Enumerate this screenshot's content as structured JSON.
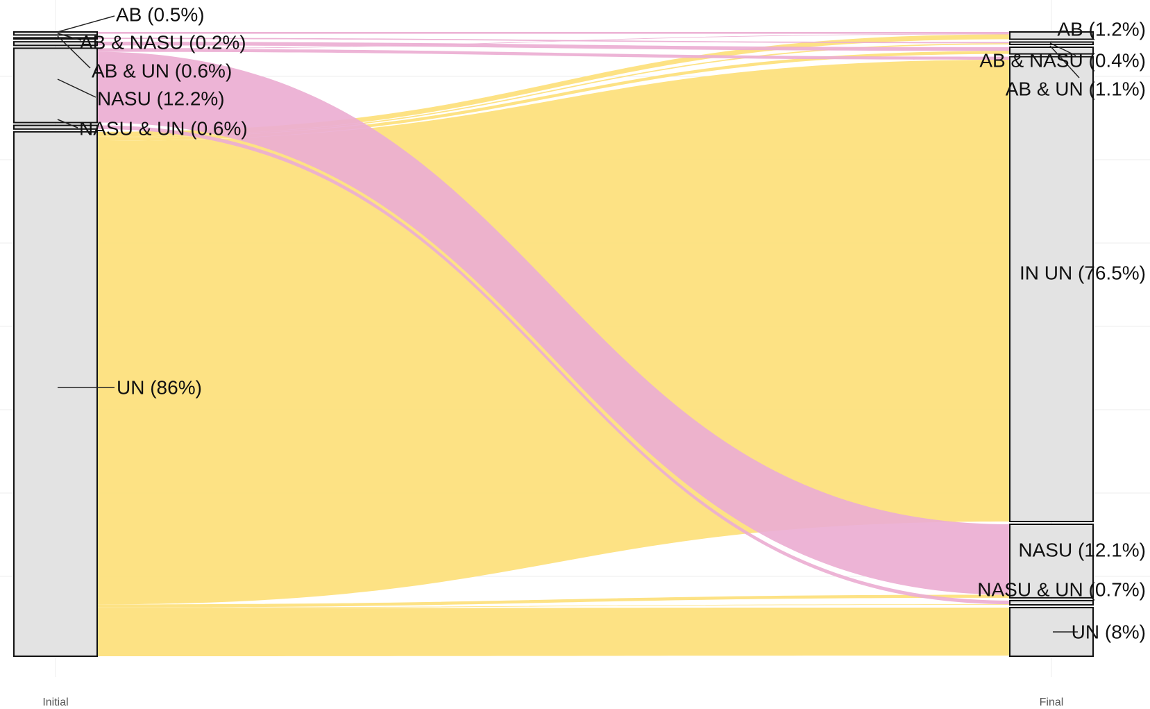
{
  "chart_data": {
    "type": "alluvial",
    "axes": [
      "Initial",
      "Final"
    ],
    "colors": {
      "yellow": "#fde07a",
      "pink": "#ecaed3",
      "node": "#e3e3e3",
      "grid": "#ececec"
    },
    "nodes": {
      "initial": [
        {
          "label": "AB (0.5%)",
          "value": 0.5
        },
        {
          "label": "AB & NASU (0.2%)",
          "value": 0.2
        },
        {
          "label": "AB & UN (0.6%)",
          "value": 0.6
        },
        {
          "label": "NASU (12.2%)",
          "value": 12.2
        },
        {
          "label": "NASU & UN (0.6%)",
          "value": 0.6
        },
        {
          "label": "UN (86%)",
          "value": 86
        }
      ],
      "final": [
        {
          "label": "AB (1.2%)",
          "value": 1.2
        },
        {
          "label": "AB & NASU (0.4%)",
          "value": 0.4
        },
        {
          "label": "AB & UN (1.1%)",
          "value": 1.1
        },
        {
          "label": "IN UN (76.5%)",
          "value": 76.5
        },
        {
          "label": "NASU (12.1%)",
          "value": 12.1
        },
        {
          "label": "NASU & UN (0.7%)",
          "value": 0.7
        },
        {
          "label": "UN (8%)",
          "value": 8
        }
      ]
    },
    "flows": [
      {
        "from": 0,
        "to": 0,
        "value": 0.3,
        "color": "pink"
      },
      {
        "from": 1,
        "to": 1,
        "value": 0.2,
        "color": "pink"
      },
      {
        "from": 2,
        "to": 2,
        "value": 0.6,
        "color": "pink"
      },
      {
        "from": 3,
        "to": 0,
        "value": 0.1,
        "color": "pink"
      },
      {
        "from": 3,
        "to": 3,
        "value": 0.5,
        "color": "pink"
      },
      {
        "from": 3,
        "to": 4,
        "value": 11.6,
        "color": "pink"
      },
      {
        "from": 4,
        "to": 5,
        "value": 0.6,
        "color": "pink"
      },
      {
        "from": 5,
        "to": 0,
        "value": 0.8,
        "color": "yellow"
      },
      {
        "from": 5,
        "to": 1,
        "value": 0.2,
        "color": "yellow"
      },
      {
        "from": 5,
        "to": 2,
        "value": 0.5,
        "color": "yellow"
      },
      {
        "from": 5,
        "to": 3,
        "value": 76.0,
        "color": "yellow"
      },
      {
        "from": 5,
        "to": 4,
        "value": 0.5,
        "color": "yellow"
      },
      {
        "from": 5,
        "to": 5,
        "value": 0.1,
        "color": "yellow"
      },
      {
        "from": 5,
        "to": 6,
        "value": 7.9,
        "color": "yellow"
      }
    ]
  }
}
